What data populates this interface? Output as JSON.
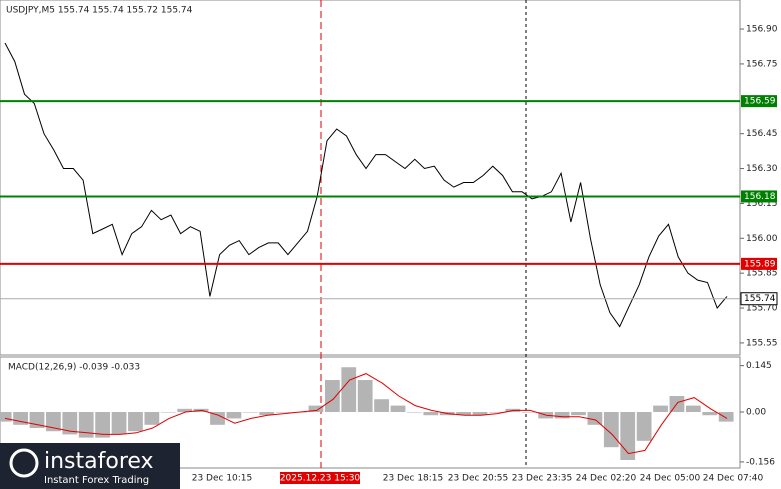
{
  "chart_data": [
    {
      "type": "line",
      "title": "USDJPY,M5  155.74 155.74 155.72 155.74",
      "values": [
        156.84,
        156.76,
        156.62,
        156.58,
        156.45,
        156.38,
        156.3,
        156.3,
        156.25,
        156.02,
        156.04,
        156.06,
        155.93,
        156.02,
        156.05,
        156.12,
        156.08,
        156.1,
        156.02,
        156.05,
        156.03,
        155.75,
        155.93,
        155.97,
        155.99,
        155.93,
        155.96,
        155.98,
        155.98,
        155.93,
        155.98,
        156.03,
        156.18,
        156.42,
        156.47,
        156.44,
        156.36,
        156.3,
        156.36,
        156.36,
        156.33,
        156.3,
        156.34,
        156.3,
        156.31,
        156.25,
        156.22,
        156.24,
        156.24,
        156.27,
        156.31,
        156.27,
        156.2,
        156.2,
        156.17,
        156.18,
        156.2,
        156.28,
        156.07,
        156.24,
        156.0,
        155.8,
        155.68,
        155.62,
        155.71,
        155.8,
        155.92,
        156.01,
        156.06,
        155.92,
        155.85,
        155.82,
        155.81,
        155.7,
        155.75
      ],
      "color": "#000000",
      "ylim": [
        155.498,
        157.025
      ],
      "yticks": [
        {
          "value": 156.9,
          "label": "156.90"
        },
        {
          "value": 156.75,
          "label": "156.75"
        },
        {
          "value": 156.45,
          "label": "156.45"
        },
        {
          "value": 156.3,
          "label": "156.30"
        },
        {
          "value": 156.15,
          "label": "156.15"
        },
        {
          "value": 156.0,
          "label": "156.00"
        },
        {
          "value": 155.85,
          "label": "155.85"
        },
        {
          "value": 155.7,
          "label": "155.70"
        },
        {
          "value": 155.55,
          "label": "155.55"
        }
      ],
      "levels": [
        {
          "value": 156.59,
          "label": "156.59",
          "color": "#008000"
        },
        {
          "value": 156.18,
          "label": "156.18",
          "color": "#008000"
        },
        {
          "value": 155.89,
          "label": "155.89",
          "color": "#e00000"
        },
        {
          "value": 155.74,
          "label": "155.74",
          "color": "#aaaaaa"
        }
      ],
      "x_labels": [
        "23 Dec 10:15",
        "2025.12.23 15:30",
        "23 Dec 18:15",
        "23 Dec 20:55",
        "23 Dec 23:35",
        "24 Dec 02:20",
        "24 Dec 05:00",
        "24 Dec 07:40"
      ]
    },
    {
      "type": "macd",
      "title": "MACD(12,26,9) -0.039 -0.033",
      "series": [
        {
          "name": "MACD",
          "color": "#b4b4b4",
          "values": [
            -0.03,
            -0.04,
            -0.05,
            -0.06,
            -0.07,
            -0.08,
            -0.08,
            -0.07,
            -0.06,
            -0.04,
            0.0,
            0.01,
            0.01,
            -0.04,
            -0.02,
            0.0,
            -0.01,
            0.0,
            0.0,
            0.02,
            0.1,
            0.14,
            0.1,
            0.04,
            0.02,
            0.0,
            -0.01,
            -0.01,
            -0.01,
            -0.01,
            0.0,
            0.01,
            0.0,
            -0.02,
            -0.02,
            -0.01,
            -0.04,
            -0.11,
            -0.15,
            -0.09,
            0.02,
            0.05,
            0.02,
            -0.01,
            -0.03
          ]
        },
        {
          "name": "Signal",
          "color": "#e00000",
          "values": [
            -0.02,
            -0.03,
            -0.04,
            -0.05,
            -0.06,
            -0.065,
            -0.07,
            -0.07,
            -0.065,
            -0.05,
            -0.02,
            0.0,
            0.005,
            -0.01,
            -0.035,
            -0.02,
            -0.01,
            -0.005,
            0.0,
            0.005,
            0.04,
            0.1,
            0.12,
            0.09,
            0.05,
            0.02,
            0.005,
            -0.005,
            -0.01,
            -0.01,
            -0.005,
            0.005,
            0.005,
            -0.01,
            -0.015,
            -0.015,
            -0.025,
            -0.07,
            -0.13,
            -0.12,
            -0.04,
            0.03,
            0.045,
            0.01,
            -0.02
          ]
        }
      ],
      "ylim": [
        -0.175,
        0.172
      ],
      "yticks": [
        0.145,
        {
          "value": 0,
          "label": "0.00"
        },
        -0.156
      ]
    }
  ],
  "logo": {
    "name": "instaforex",
    "tagline": "Instant Forex Trading"
  }
}
